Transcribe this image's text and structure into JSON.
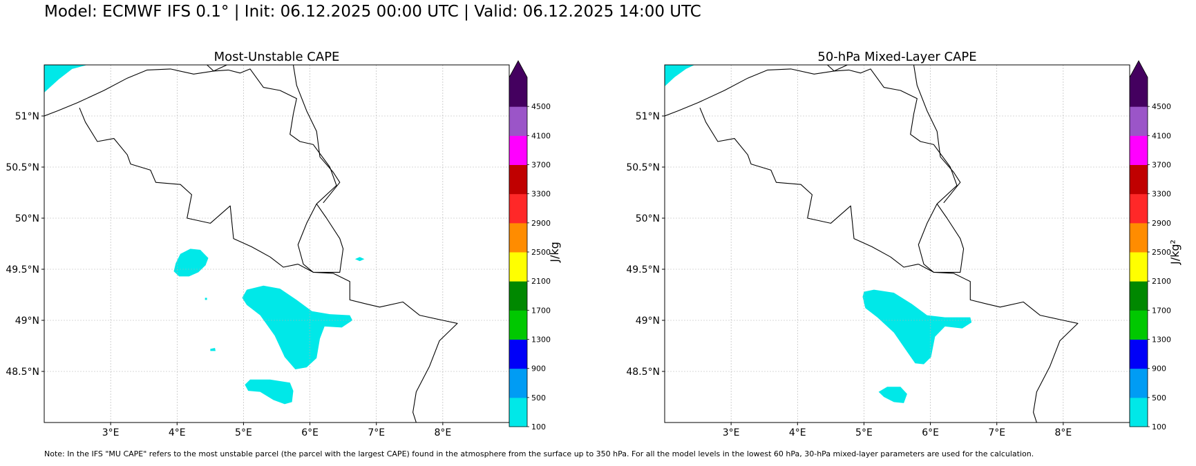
{
  "title": "Model: ECMWF IFS 0.1° | Init: 06.12.2025 00:00 UTC | Valid: 06.12.2025 14:00 UTC",
  "note": "Note: In the IFS \"MU CAPE\" refers to the most unstable parcel (the parcel with the largest CAPE) found in the atmosphere from the surface up to 350 hPa. For all the model levels in the lowest 60 hPa, 30-hPa mixed-layer parameters are used for the calculation.",
  "colors": {
    "levels": [
      "#00e8e8",
      "#009cf4",
      "#0000f8",
      "#00c800",
      "#008800",
      "#ffff00",
      "#ff8c00",
      "#ff2828",
      "#c00000",
      "#ff00ff",
      "#9b55c8",
      "#44005f"
    ],
    "extend": "#44005f",
    "cape_shape": "#00e8e8",
    "border": "#000000",
    "grid": "#b0b0b0"
  },
  "chart_data": [
    {
      "type": "heatmap",
      "title": "Most-Unstable CAPE",
      "xlabel": "",
      "ylabel": "",
      "xlim": [
        2.0,
        9.0
      ],
      "ylim": [
        48.0,
        51.5
      ],
      "x_ticks": [
        3,
        4,
        5,
        6,
        7,
        8
      ],
      "x_tick_labels": [
        "3°E",
        "4°E",
        "5°E",
        "6°E",
        "7°E",
        "8°E"
      ],
      "y_ticks": [
        48.5,
        49,
        49.5,
        50,
        50.5,
        51
      ],
      "y_tick_labels": [
        "48.5°N",
        "49°N",
        "49.5°N",
        "50°N",
        "50.5°N",
        "51°N"
      ],
      "grid": true,
      "colorbar": {
        "label": "J/kg",
        "ticks": [
          100,
          500,
          900,
          1300,
          1700,
          2100,
          2500,
          2900,
          3300,
          3700,
          4100,
          4500
        ],
        "extend": "max"
      },
      "cape_areas_lon_lat": [
        [
          [
            2.0,
            51.23
          ],
          [
            2.22,
            51.36
          ],
          [
            2.42,
            51.46
          ],
          [
            2.65,
            51.5
          ],
          [
            2.0,
            51.5
          ]
        ],
        [
          [
            3.95,
            49.48
          ],
          [
            3.98,
            49.56
          ],
          [
            4.05,
            49.65
          ],
          [
            4.2,
            49.7
          ],
          [
            4.35,
            49.69
          ],
          [
            4.47,
            49.61
          ],
          [
            4.43,
            49.54
          ],
          [
            4.32,
            49.47
          ],
          [
            4.18,
            49.43
          ],
          [
            4.03,
            49.43
          ]
        ],
        [
          [
            4.98,
            49.22
          ],
          [
            5.05,
            49.3
          ],
          [
            5.3,
            49.34
          ],
          [
            5.55,
            49.31
          ],
          [
            5.8,
            49.2
          ],
          [
            6.03,
            49.09
          ],
          [
            6.3,
            49.06
          ],
          [
            6.6,
            49.05
          ],
          [
            6.64,
            49.0
          ],
          [
            6.48,
            48.93
          ],
          [
            6.22,
            48.94
          ],
          [
            6.15,
            48.82
          ],
          [
            6.1,
            48.63
          ],
          [
            5.95,
            48.54
          ],
          [
            5.78,
            48.52
          ],
          [
            5.62,
            48.64
          ],
          [
            5.47,
            48.85
          ],
          [
            5.25,
            49.05
          ],
          [
            5.05,
            49.15
          ]
        ],
        [
          [
            5.02,
            48.37
          ],
          [
            5.1,
            48.42
          ],
          [
            5.4,
            48.42
          ],
          [
            5.7,
            48.39
          ],
          [
            5.75,
            48.31
          ],
          [
            5.73,
            48.2
          ],
          [
            5.62,
            48.18
          ],
          [
            5.45,
            48.22
          ],
          [
            5.25,
            48.3
          ],
          [
            5.07,
            48.31
          ]
        ],
        [
          [
            6.68,
            49.6
          ],
          [
            6.75,
            49.62
          ],
          [
            6.82,
            49.6
          ],
          [
            6.75,
            49.58
          ]
        ],
        [
          [
            4.5,
            48.72
          ],
          [
            4.57,
            48.73
          ],
          [
            4.58,
            48.7
          ],
          [
            4.5,
            48.7
          ]
        ],
        [
          [
            4.42,
            49.22
          ],
          [
            4.45,
            49.22
          ],
          [
            4.45,
            49.2
          ],
          [
            4.42,
            49.2
          ]
        ]
      ]
    },
    {
      "type": "heatmap",
      "title": "50-hPa Mixed-Layer CAPE",
      "xlabel": "",
      "ylabel": "",
      "xlim": [
        2.0,
        9.0
      ],
      "ylim": [
        48.0,
        51.5
      ],
      "x_ticks": [
        3,
        4,
        5,
        6,
        7,
        8
      ],
      "x_tick_labels": [
        "3°E",
        "4°E",
        "5°E",
        "6°E",
        "7°E",
        "8°E"
      ],
      "y_ticks": [
        48.5,
        49,
        49.5,
        50,
        50.5,
        51
      ],
      "y_tick_labels": [
        "48.5°N",
        "49°N",
        "49.5°N",
        "50°N",
        "50.5°N",
        "51°N"
      ],
      "grid": true,
      "colorbar": {
        "label": "J/kg²",
        "ticks": [
          100,
          500,
          900,
          1300,
          1700,
          2100,
          2500,
          2900,
          3300,
          3700,
          4100,
          4500
        ],
        "extend": "max"
      },
      "cape_areas_lon_lat": [
        [
          [
            2.0,
            51.29
          ],
          [
            2.15,
            51.38
          ],
          [
            2.32,
            51.46
          ],
          [
            2.45,
            51.5
          ],
          [
            2.0,
            51.5
          ]
        ],
        [
          [
            4.98,
            49.23
          ],
          [
            5.0,
            49.28
          ],
          [
            5.15,
            49.3
          ],
          [
            5.45,
            49.27
          ],
          [
            5.72,
            49.16
          ],
          [
            5.95,
            49.05
          ],
          [
            6.22,
            49.03
          ],
          [
            6.6,
            49.03
          ],
          [
            6.62,
            48.98
          ],
          [
            6.48,
            48.92
          ],
          [
            6.22,
            48.94
          ],
          [
            6.07,
            48.84
          ],
          [
            6.01,
            48.64
          ],
          [
            5.9,
            48.57
          ],
          [
            5.77,
            48.58
          ],
          [
            5.62,
            48.72
          ],
          [
            5.45,
            48.88
          ],
          [
            5.2,
            49.03
          ],
          [
            5.02,
            49.12
          ]
        ],
        [
          [
            5.22,
            48.3
          ],
          [
            5.35,
            48.35
          ],
          [
            5.55,
            48.35
          ],
          [
            5.65,
            48.28
          ],
          [
            5.6,
            48.19
          ],
          [
            5.45,
            48.2
          ],
          [
            5.3,
            48.25
          ]
        ]
      ]
    }
  ],
  "borders_lon_lat": [
    [
      [
        2.0,
        51.0
      ],
      [
        2.2,
        51.05
      ],
      [
        2.5,
        51.13
      ],
      [
        2.9,
        51.25
      ],
      [
        3.25,
        51.37
      ],
      [
        3.55,
        51.45
      ],
      [
        3.9,
        51.46
      ],
      [
        4.25,
        51.41
      ],
      [
        4.55,
        51.44
      ],
      [
        4.75,
        51.5
      ]
    ],
    [
      [
        2.53,
        51.08
      ],
      [
        2.62,
        50.94
      ],
      [
        2.8,
        50.75
      ],
      [
        3.05,
        50.78
      ],
      [
        3.25,
        50.62
      ],
      [
        3.3,
        50.53
      ],
      [
        3.6,
        50.47
      ],
      [
        3.68,
        50.35
      ],
      [
        4.05,
        50.33
      ],
      [
        4.22,
        50.23
      ],
      [
        4.15,
        50.0
      ],
      [
        4.5,
        49.95
      ],
      [
        4.8,
        50.12
      ],
      [
        4.85,
        49.8
      ],
      [
        5.12,
        49.72
      ],
      [
        5.4,
        49.62
      ],
      [
        5.6,
        49.52
      ],
      [
        5.82,
        49.55
      ]
    ],
    [
      [
        4.45,
        51.5
      ],
      [
        4.55,
        51.44
      ],
      [
        4.77,
        51.45
      ],
      [
        4.95,
        51.42
      ],
      [
        5.1,
        51.46
      ],
      [
        5.3,
        51.28
      ],
      [
        5.55,
        51.25
      ],
      [
        5.8,
        51.17
      ],
      [
        5.75,
        51.02
      ],
      [
        5.7,
        50.82
      ],
      [
        5.85,
        50.75
      ],
      [
        6.05,
        50.72
      ],
      [
        6.3,
        50.5
      ],
      [
        6.4,
        50.32
      ],
      [
        6.1,
        50.14
      ]
    ],
    [
      [
        6.1,
        50.14
      ],
      [
        5.95,
        49.95
      ],
      [
        5.82,
        49.74
      ],
      [
        5.9,
        49.55
      ],
      [
        6.05,
        49.47
      ],
      [
        6.3,
        49.47
      ],
      [
        6.45,
        49.47
      ],
      [
        6.5,
        49.7
      ],
      [
        6.45,
        49.8
      ],
      [
        6.25,
        50.0
      ],
      [
        6.1,
        50.14
      ]
    ],
    [
      [
        5.82,
        49.55
      ],
      [
        6.05,
        49.47
      ],
      [
        6.35,
        49.46
      ],
      [
        6.6,
        49.38
      ],
      [
        6.6,
        49.2
      ],
      [
        6.85,
        49.16
      ],
      [
        7.05,
        49.13
      ],
      [
        7.4,
        49.18
      ],
      [
        7.65,
        49.05
      ],
      [
        8.0,
        49.0
      ],
      [
        8.22,
        48.97
      ],
      [
        7.95,
        48.8
      ],
      [
        7.8,
        48.55
      ],
      [
        7.6,
        48.3
      ],
      [
        7.55,
        48.1
      ],
      [
        7.6,
        48.0
      ]
    ],
    [
      [
        5.75,
        51.5
      ],
      [
        5.8,
        51.3
      ],
      [
        5.95,
        51.05
      ],
      [
        6.1,
        50.85
      ],
      [
        6.15,
        50.6
      ],
      [
        6.35,
        50.45
      ],
      [
        6.45,
        50.35
      ],
      [
        6.2,
        50.15
      ]
    ]
  ]
}
